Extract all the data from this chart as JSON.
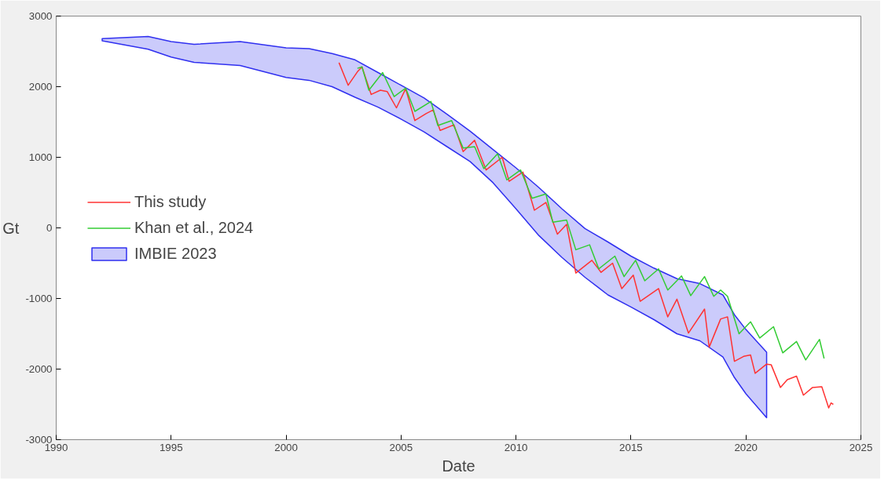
{
  "chart_data": {
    "type": "line",
    "xlabel": "Date",
    "ylabel": "Gt",
    "xlim": [
      1990,
      2025
    ],
    "xticks": [
      1990,
      1995,
      2000,
      2005,
      2010,
      2015,
      2020,
      2025
    ],
    "ylim": [
      -3000,
      3000
    ],
    "yticks": [
      -3000,
      -2000,
      -1000,
      0,
      1000,
      2000,
      3000
    ],
    "grid": false,
    "legend": "left",
    "line_style": "solid",
    "marker": "none",
    "series": [
      {
        "name": "This study",
        "color": "#ff3333",
        "x": [
          2002.3,
          2002.7,
          2003.1,
          2003.3,
          2003.7,
          2004.1,
          2004.4,
          2004.8,
          2005.2,
          2005.6,
          2006.1,
          2006.4,
          2006.7,
          2007.3,
          2007.7,
          2008.2,
          2008.7,
          2009.4,
          2009.7,
          2010.3,
          2010.8,
          2011.3,
          2011.8,
          2012.2,
          2012.6,
          2013.3,
          2013.7,
          2014.2,
          2014.6,
          2015.1,
          2015.4,
          2016.2,
          2016.6,
          2017.0,
          2017.5,
          2018.2,
          2018.4,
          2018.9,
          2019.2,
          2019.5,
          2019.9,
          2020.2,
          2020.4,
          2020.9,
          2021.1,
          2021.5,
          2021.8,
          2022.2,
          2022.5,
          2022.9,
          2023.3,
          2023.6,
          2023.7,
          2023.8
        ],
        "values": [
          2340,
          2020,
          2210,
          2280,
          1890,
          1950,
          1930,
          1700,
          1970,
          1520,
          1620,
          1670,
          1380,
          1460,
          1080,
          1240,
          820,
          1000,
          660,
          790,
          250,
          360,
          -90,
          50,
          -640,
          -460,
          -630,
          -500,
          -860,
          -670,
          -1040,
          -860,
          -1260,
          -1010,
          -1490,
          -1150,
          -1690,
          -1290,
          -1260,
          -1890,
          -1820,
          -1800,
          -2060,
          -1930,
          -1940,
          -2260,
          -2150,
          -2100,
          -2370,
          -2260,
          -2250,
          -2550,
          -2480,
          -2500
        ]
      },
      {
        "name": "Khan et al., 2024",
        "color": "#33cc33",
        "x": [
          2003.1,
          2003.3,
          2003.6,
          2004.2,
          2004.7,
          2005.2,
          2005.6,
          2006.3,
          2006.6,
          2007.2,
          2007.7,
          2008.2,
          2008.6,
          2009.2,
          2009.6,
          2010.2,
          2010.7,
          2011.3,
          2011.6,
          2012.2,
          2012.6,
          2013.2,
          2013.6,
          2014.3,
          2014.7,
          2015.2,
          2015.6,
          2016.2,
          2016.6,
          2017.2,
          2017.6,
          2018.2,
          2018.6,
          2018.9,
          2019.2,
          2019.7,
          2020.2,
          2020.6,
          2021.2,
          2021.6,
          2022.2,
          2022.6,
          2023.2,
          2023.4
        ],
        "values": [
          2260,
          2280,
          1950,
          2200,
          1860,
          1980,
          1650,
          1790,
          1450,
          1520,
          1130,
          1150,
          840,
          1050,
          680,
          820,
          420,
          480,
          80,
          110,
          -310,
          -240,
          -580,
          -400,
          -690,
          -460,
          -750,
          -580,
          -880,
          -680,
          -960,
          -690,
          -970,
          -880,
          -970,
          -1500,
          -1330,
          -1560,
          -1400,
          -1770,
          -1610,
          -1870,
          -1580,
          -1850
        ]
      },
      {
        "name": "IMBIE 2023",
        "type": "area",
        "color": "#3030f0",
        "x": [
          1992,
          1994,
          1995,
          1996,
          1998,
          2000,
          2001,
          2002,
          2003,
          2004,
          2005,
          2006,
          2007,
          2008,
          2009,
          2010,
          2011,
          2012,
          2013,
          2014,
          2015,
          2016,
          2017,
          2018,
          2019,
          2019.5,
          2020,
          2020.9
        ],
        "values": [
          null,
          null,
          null,
          null,
          null,
          null,
          null,
          null,
          null,
          null,
          null,
          null,
          null,
          null,
          null,
          null,
          null,
          null,
          null,
          null,
          null,
          null,
          null,
          null,
          null,
          null,
          null,
          null
        ],
        "upper": [
          2680,
          2710,
          2640,
          2600,
          2640,
          2550,
          2540,
          2470,
          2380,
          2200,
          2020,
          1840,
          1610,
          1370,
          1110,
          850,
          570,
          270,
          -10,
          -200,
          -400,
          -570,
          -720,
          -790,
          -950,
          -1230,
          -1440,
          -1760
        ],
        "lower": [
          2650,
          2530,
          2420,
          2345,
          2300,
          2130,
          2090,
          2000,
          1850,
          1710,
          1540,
          1360,
          1150,
          940,
          640,
          270,
          -110,
          -420,
          -700,
          -950,
          -1120,
          -1300,
          -1500,
          -1600,
          -1830,
          -2120,
          -2350,
          -2690
        ]
      }
    ]
  }
}
